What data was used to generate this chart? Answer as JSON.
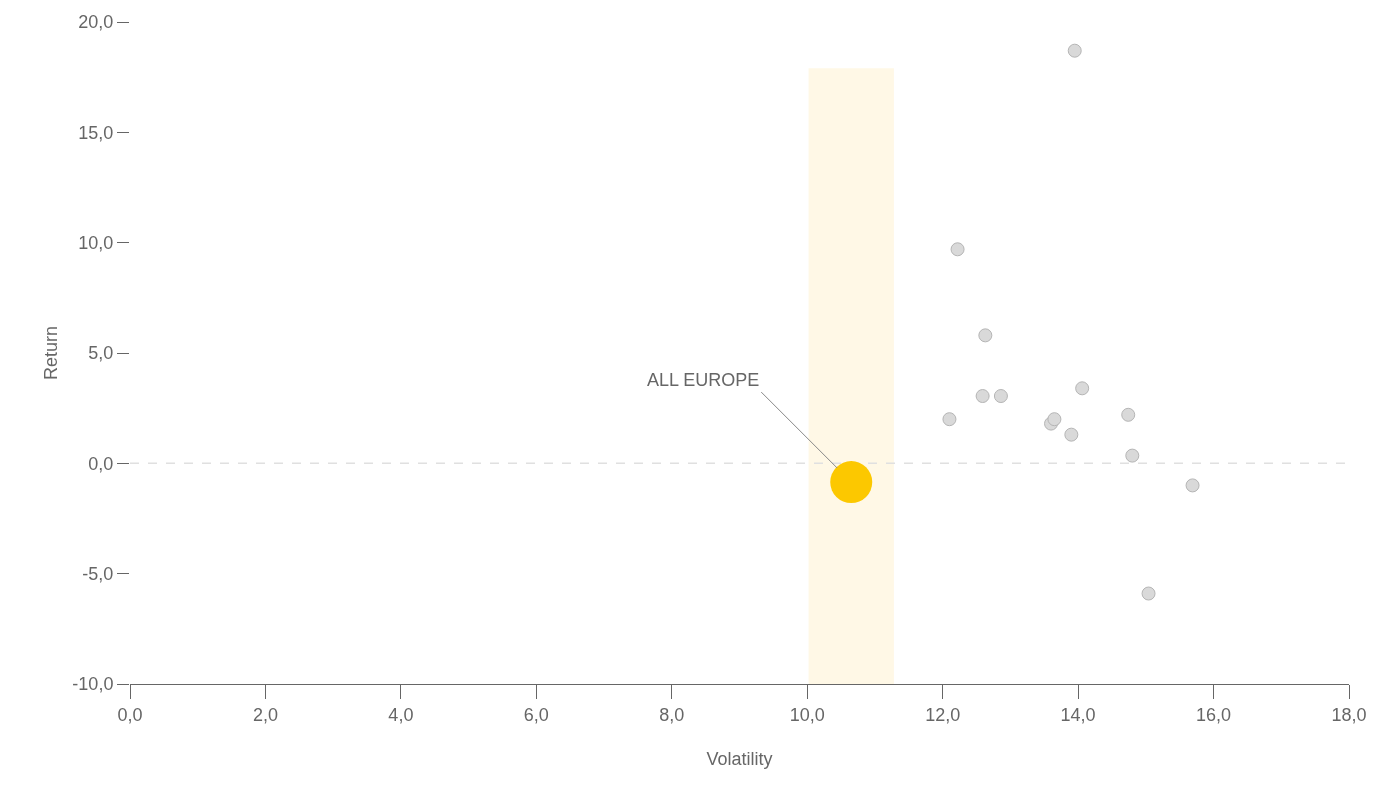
{
  "chart_data": {
    "type": "scatter",
    "xlabel": "Volatility",
    "ylabel": "Return",
    "series": [
      {
        "color": "#d9d9d9",
        "x": [
          13.95,
          12.22,
          12.63,
          12.59,
          12.86,
          12.1,
          13.6,
          13.65,
          13.9,
          14.06,
          14.74,
          14.8,
          15.69,
          15.04
        ],
        "values": [
          18.7,
          9.7,
          5.8,
          3.05,
          3.05,
          2.0,
          1.8,
          2.0,
          1.3,
          3.4,
          2.2,
          0.35,
          -1.0,
          -5.9
        ]
      },
      {
        "color": "#fcc800",
        "x": [
          10.65
        ],
        "values": [
          -0.85
        ]
      }
    ],
    "xlim": [
      0,
      18
    ],
    "ylim": [
      -10,
      20
    ],
    "xticks": [
      {
        "value": 0,
        "label": "0,0"
      },
      {
        "value": 2,
        "label": "2,0"
      },
      {
        "value": 4,
        "label": "4,0"
      },
      {
        "value": 6,
        "label": "6,0"
      },
      {
        "value": 8,
        "label": "8,0"
      },
      {
        "value": 10,
        "label": "10,0"
      },
      {
        "value": 12,
        "label": "12,0"
      },
      {
        "value": 14,
        "label": "14,0"
      },
      {
        "value": 16,
        "label": "16,0"
      },
      {
        "value": 18,
        "label": "18,0"
      }
    ],
    "yticks": [
      {
        "value": -10,
        "label": "-10,0"
      },
      {
        "value": -5,
        "label": "-5,0"
      },
      {
        "value": 0,
        "label": "0,0"
      },
      {
        "value": 5,
        "label": "5,0"
      },
      {
        "value": 10,
        "label": "10,0"
      },
      {
        "value": 15,
        "label": "15,0"
      },
      {
        "value": 20,
        "label": "20,0"
      }
    ],
    "ref_lines": [
      {
        "axis": "y",
        "value": 0,
        "color": "#e0e0e0",
        "line_style": "dashed"
      }
    ],
    "bands": [
      {
        "axis": "x",
        "from": 10.02,
        "to": 11.28,
        "color": "#fff8e6"
      }
    ],
    "annotations": [
      {
        "text": "ALL EUROPE",
        "x": 10.65,
        "y": -0.85
      }
    ],
    "marker": "circle",
    "grid": false
  }
}
